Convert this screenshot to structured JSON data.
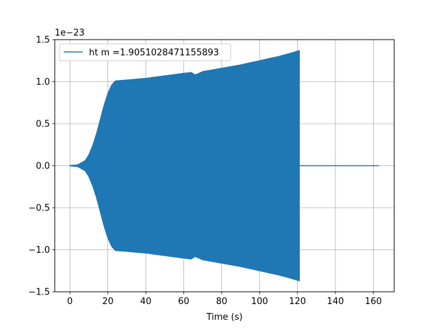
{
  "chart_data": {
    "type": "line",
    "title": "",
    "xlabel": "Time (s)",
    "ylabel": "",
    "y_offset_text": "1e−23",
    "xlim": [
      -8,
      171
    ],
    "ylim": [
      -1.5,
      1.5
    ],
    "x_ticks": [
      0,
      20,
      40,
      60,
      80,
      100,
      120,
      140,
      160
    ],
    "x_tick_labels": [
      "0",
      "20",
      "40",
      "60",
      "80",
      "100",
      "120",
      "140",
      "160"
    ],
    "y_ticks": [
      -1.5,
      -1.0,
      -0.5,
      0.0,
      0.5,
      1.0,
      1.5
    ],
    "y_tick_labels": [
      "−1.5",
      "−1.0",
      "−0.5",
      "0.0",
      "0.5",
      "1.0",
      "1.5"
    ],
    "grid": true,
    "legend_position": "top-left",
    "series": [
      {
        "name": "ht m =1.9051028471155893",
        "color": "#1f77b4",
        "style": "oscillating signal, symmetric envelope",
        "envelope_x": [
          0,
          4,
          8,
          10,
          12,
          14,
          16,
          18,
          20,
          22,
          24,
          30,
          40,
          50,
          60,
          64,
          66,
          70,
          80,
          90,
          100,
          110,
          115,
          121
        ],
        "envelope_y": [
          0.003,
          0.01,
          0.06,
          0.13,
          0.24,
          0.38,
          0.55,
          0.72,
          0.86,
          0.96,
          1.01,
          1.02,
          1.04,
          1.07,
          1.1,
          1.11,
          1.08,
          1.12,
          1.16,
          1.2,
          1.25,
          1.3,
          1.33,
          1.37
        ],
        "signal_end": 121,
        "flat_segment": [
          121,
          163
        ],
        "flat_value": 0.0
      }
    ]
  }
}
